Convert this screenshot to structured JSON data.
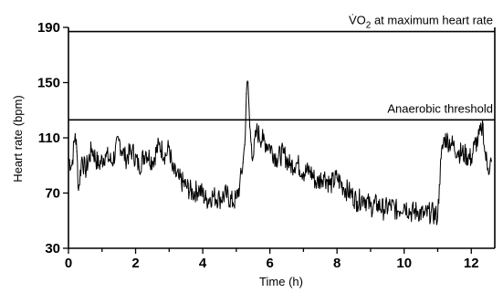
{
  "chart_data": {
    "type": "line",
    "title": "",
    "xlabel": "Time (h)",
    "ylabel": "Heart rate (bpm)",
    "xlim": [
      0,
      12.7
    ],
    "ylim": [
      30,
      190
    ],
    "xticks": [
      "0",
      "2",
      "4",
      "6",
      "8",
      "10",
      "12"
    ],
    "yticks": [
      "30",
      "70",
      "110",
      "150",
      "190"
    ],
    "reference_lines": [
      {
        "name_prefix": "V̇O",
        "name_subscript": "2",
        "name_suffix": " at maximum heart rate",
        "y": 187
      },
      {
        "name": "Anaerobic threshold",
        "y": 123
      }
    ],
    "series": [
      {
        "name": "",
        "x": [
          0.0,
          0.1,
          0.2,
          0.25,
          0.3,
          0.4,
          0.5,
          0.7,
          0.9,
          1.1,
          1.3,
          1.5,
          1.7,
          1.9,
          2.1,
          2.3,
          2.5,
          2.7,
          2.9,
          3.0,
          3.1,
          3.3,
          3.5,
          3.7,
          3.9,
          4.1,
          4.3,
          4.5,
          4.7,
          4.9,
          5.0,
          5.1,
          5.2,
          5.25,
          5.3,
          5.35,
          5.4,
          5.45,
          5.5,
          5.6,
          5.8,
          6.0,
          6.2,
          6.4,
          6.6,
          6.8,
          7.0,
          7.2,
          7.4,
          7.6,
          7.8,
          8.0,
          8.2,
          8.4,
          8.6,
          8.8,
          9.0,
          9.2,
          9.4,
          9.6,
          9.8,
          10.0,
          10.2,
          10.4,
          10.6,
          10.8,
          11.0,
          11.05,
          11.1,
          11.2,
          11.4,
          11.6,
          11.8,
          12.0,
          12.1,
          12.2,
          12.3,
          12.35,
          12.4,
          12.5,
          12.6
        ],
        "y": [
          95,
          90,
          113,
          100,
          72,
          96,
          86,
          102,
          90,
          98,
          92,
          108,
          95,
          101,
          89,
          100,
          93,
          105,
          97,
          104,
          86,
          80,
          75,
          70,
          73,
          65,
          68,
          66,
          69,
          63,
          66,
          75,
          92,
          105,
          142,
          150,
          118,
          105,
          96,
          115,
          108,
          104,
          95,
          99,
          90,
          92,
          85,
          86,
          77,
          83,
          76,
          81,
          74,
          70,
          64,
          67,
          60,
          62,
          58,
          61,
          57,
          62,
          56,
          57,
          54,
          56,
          53,
          76,
          95,
          110,
          106,
          100,
          98,
          95,
          105,
          108,
          115,
          120,
          100,
          88,
          93
        ]
      }
    ]
  }
}
